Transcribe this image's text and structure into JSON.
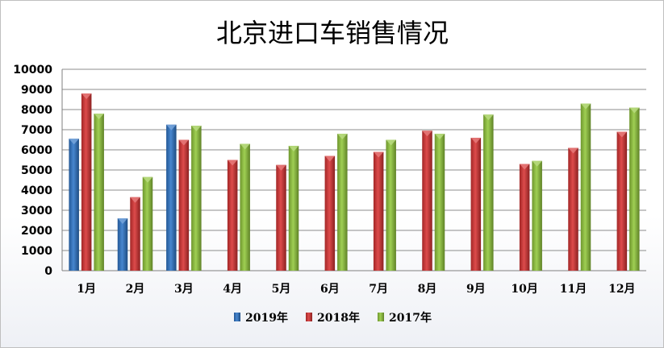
{
  "chart_data": {
    "type": "bar",
    "title": "北京进口车销售情况",
    "xlabel": "",
    "ylabel": "",
    "categories": [
      "1月",
      "2月",
      "3月",
      "4月",
      "5月",
      "6月",
      "7月",
      "8月",
      "9月",
      "10月",
      "11月",
      "12月"
    ],
    "series": [
      {
        "name": "2019年",
        "color": "#2e75c8",
        "values": [
          6550,
          2600,
          7250,
          null,
          null,
          null,
          null,
          null,
          null,
          null,
          null,
          null
        ]
      },
      {
        "name": "2018年",
        "color": "#d83232",
        "values": [
          8800,
          3650,
          6500,
          5500,
          5250,
          5700,
          5900,
          6950,
          6600,
          5300,
          6100,
          6900
        ]
      },
      {
        "name": "2017年",
        "color": "#92c83c",
        "values": [
          7800,
          4650,
          7200,
          6300,
          6200,
          6800,
          6500,
          6800,
          7750,
          5450,
          8300,
          8100
        ]
      }
    ],
    "ylim": [
      0,
      10000
    ],
    "yticks": [
      0,
      1000,
      2000,
      3000,
      4000,
      5000,
      6000,
      7000,
      8000,
      9000,
      10000
    ],
    "grid": true,
    "legend": "bottom"
  }
}
